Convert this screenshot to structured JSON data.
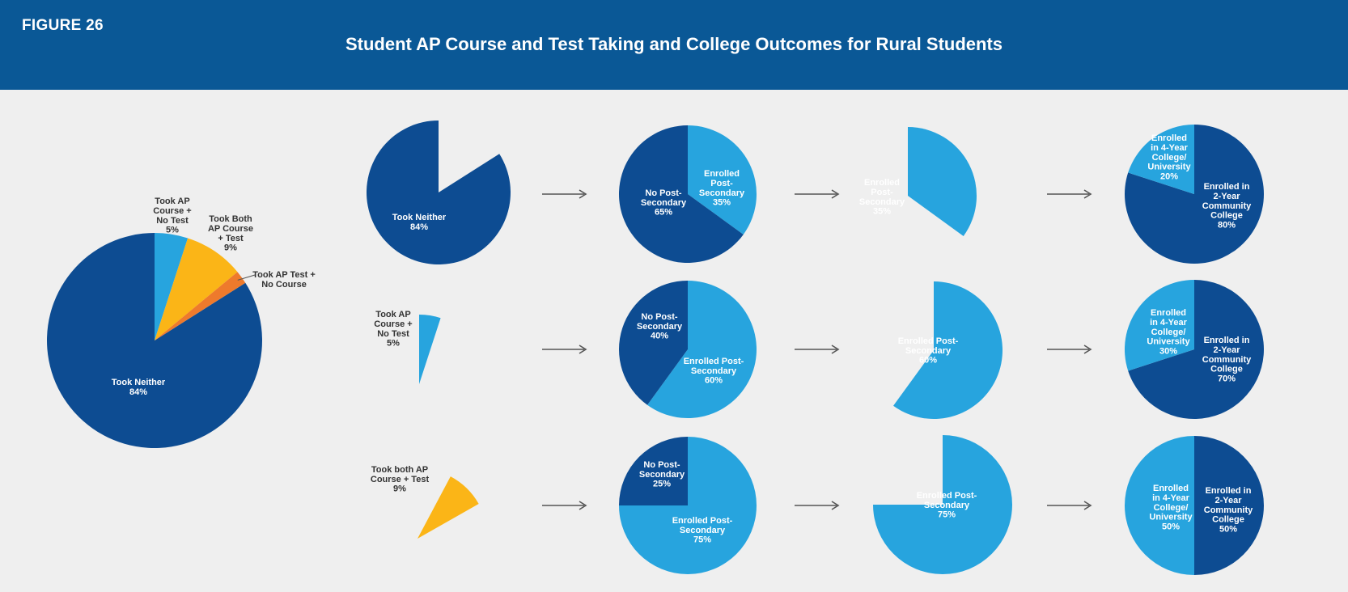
{
  "header": {
    "figure_label": "FIGURE 26",
    "title": "Student AP Course and Test Taking and College Outcomes for Rural Students"
  },
  "colors": {
    "dark_blue": "#0d4c92",
    "light_blue": "#27a4de",
    "yellow": "#fbb517",
    "orange": "#ee7a2c",
    "arrow": "#555555",
    "label_dark": "#333333",
    "label_light": "#ffffff"
  },
  "chart_data": [
    {
      "id": "overall",
      "type": "pie",
      "slices": [
        {
          "label": [
            "Took Neither",
            "84%"
          ],
          "value": 84,
          "color": "dark_blue"
        },
        {
          "label": [
            "Took AP",
            "Course +",
            "No Test",
            "5%"
          ],
          "value": 5,
          "color": "light_blue"
        },
        {
          "label": [
            "Took Both",
            "AP Course",
            "+ Test",
            "9%"
          ],
          "value": 9,
          "color": "yellow"
        },
        {
          "label": [
            "Took AP Test +",
            "No Course"
          ],
          "value": 2,
          "color": "orange"
        }
      ]
    },
    {
      "id": "rows",
      "type": "pie",
      "rows": [
        {
          "group": {
            "label": [
              "Took Neither",
              "84%"
            ],
            "value": 84,
            "color": "dark_blue"
          },
          "postsecondary": [
            {
              "label": [
                "Enrolled",
                "Post-",
                "Secondary",
                "35%"
              ],
              "value": 35,
              "color": "light_blue"
            },
            {
              "label": [
                "No Post-",
                "Secondary",
                "65%"
              ],
              "value": 65,
              "color": "dark_blue"
            }
          ],
          "enrolled": {
            "label": [
              "Enrolled",
              "Post-",
              "Secondary",
              "35%"
            ],
            "value": 35,
            "color": "light_blue"
          },
          "college_type": [
            {
              "label": [
                "Enrolled in",
                "2-Year",
                "Community",
                "College",
                "80%"
              ],
              "value": 80,
              "color": "dark_blue"
            },
            {
              "label": [
                "Enrolled",
                "in 4-Year",
                "College/",
                "University",
                "20%"
              ],
              "value": 20,
              "color": "light_blue"
            }
          ]
        },
        {
          "group": {
            "label": [
              "Took AP",
              "Course +",
              "No Test",
              "5%"
            ],
            "value": 5,
            "color": "light_blue"
          },
          "postsecondary": [
            {
              "label": [
                "Enrolled Post-",
                "Secondary",
                "60%"
              ],
              "value": 60,
              "color": "light_blue"
            },
            {
              "label": [
                "No Post-",
                "Secondary",
                "40%"
              ],
              "value": 40,
              "color": "dark_blue"
            }
          ],
          "enrolled": {
            "label": [
              "Enrolled Post-",
              "Secondary",
              "60%"
            ],
            "value": 60,
            "color": "light_blue"
          },
          "college_type": [
            {
              "label": [
                "Enrolled in",
                "2-Year",
                "Community",
                "College",
                "70%"
              ],
              "value": 70,
              "color": "dark_blue"
            },
            {
              "label": [
                "Enrolled",
                "in 4-Year",
                "College/",
                "University",
                "30%"
              ],
              "value": 30,
              "color": "light_blue"
            }
          ]
        },
        {
          "group": {
            "label": [
              "Took both AP",
              "Course + Test",
              "9%"
            ],
            "value": 9,
            "color": "yellow"
          },
          "postsecondary": [
            {
              "label": [
                "Enrolled Post-",
                "Secondary",
                "75%"
              ],
              "value": 75,
              "color": "light_blue"
            },
            {
              "label": [
                "No Post-",
                "Secondary",
                "25%"
              ],
              "value": 25,
              "color": "dark_blue"
            }
          ],
          "enrolled": {
            "label": [
              "Enrolled Post-",
              "Secondary",
              "75%"
            ],
            "value": 75,
            "color": "light_blue"
          },
          "college_type": [
            {
              "label": [
                "Enrolled in",
                "2-Year",
                "Community",
                "College",
                "50%"
              ],
              "value": 50,
              "color": "dark_blue"
            },
            {
              "label": [
                "Enrolled",
                "in 4-Year",
                "College/",
                "University",
                "50%"
              ],
              "value": 50,
              "color": "light_blue"
            }
          ]
        }
      ]
    }
  ]
}
